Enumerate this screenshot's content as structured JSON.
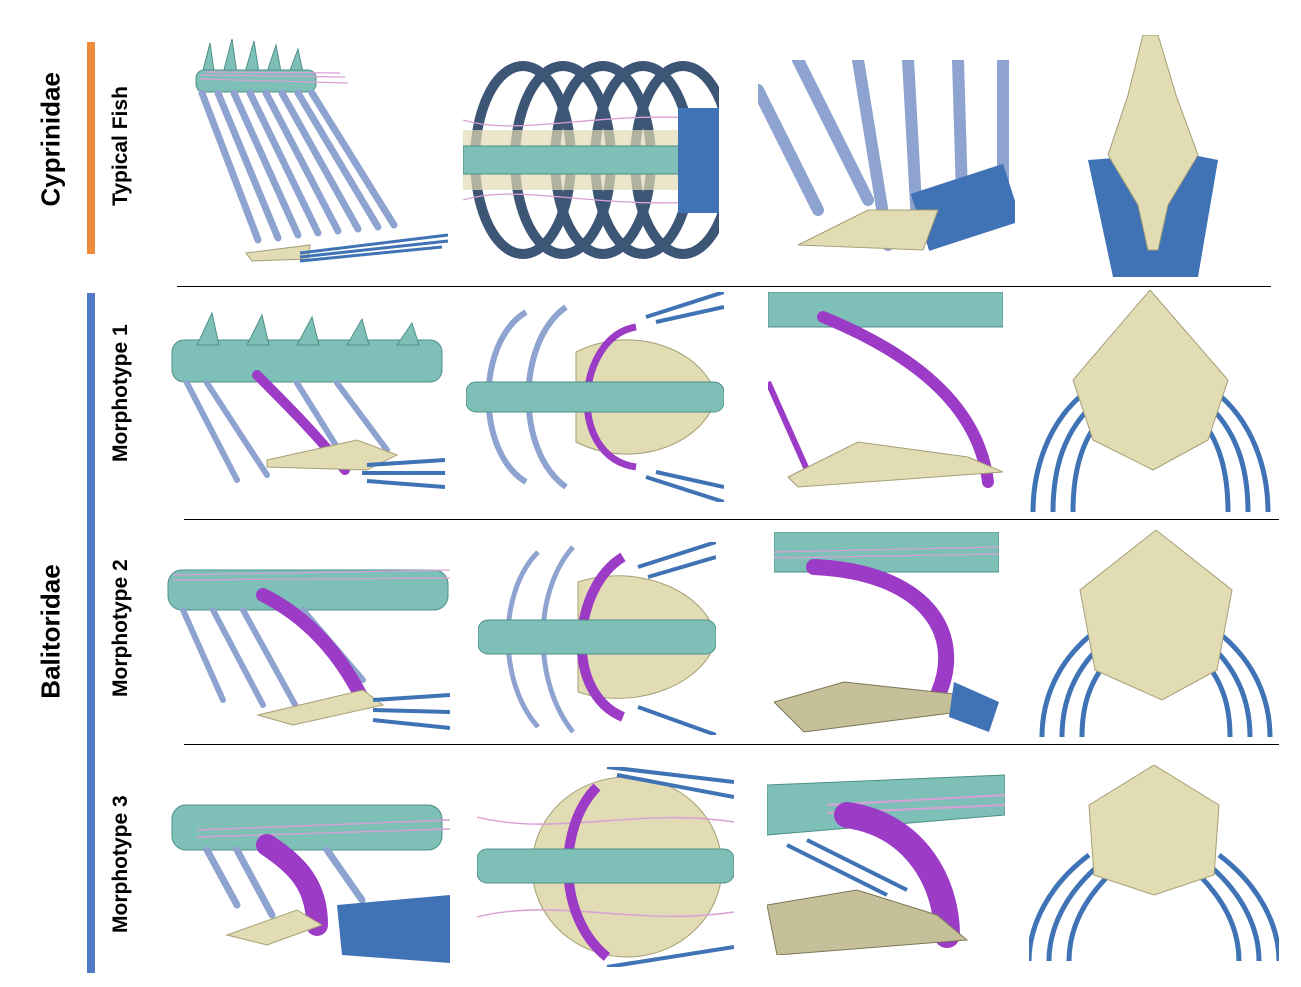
{
  "groups": {
    "cyprinidae": {
      "label": "Cyprinidae",
      "color": "#ed8b3a"
    },
    "balitoridae": {
      "label": "Balitoridae",
      "color": "#4f79c4"
    }
  },
  "rows": {
    "typical_fish": {
      "label": "Typical Fish"
    },
    "morphotype_1": {
      "label": "Morphotype 1"
    },
    "morphotype_2": {
      "label": "Morphotype 2"
    },
    "morphotype_3": {
      "label": "Morphotype 3"
    }
  },
  "colors": {
    "vertebra": "#7ec0b8",
    "rib": "#8ea3cf",
    "rib_dark": "#3e5676",
    "skull_bone": "#e2dcb4",
    "fin_ray": "#3f73b6",
    "modified_rib": "#9b3bc6",
    "intermuscular": "#d8a0d6"
  },
  "panel_views": [
    "lateral-view",
    "ventral-view",
    "closeup-view",
    "skull-ventral-view"
  ]
}
